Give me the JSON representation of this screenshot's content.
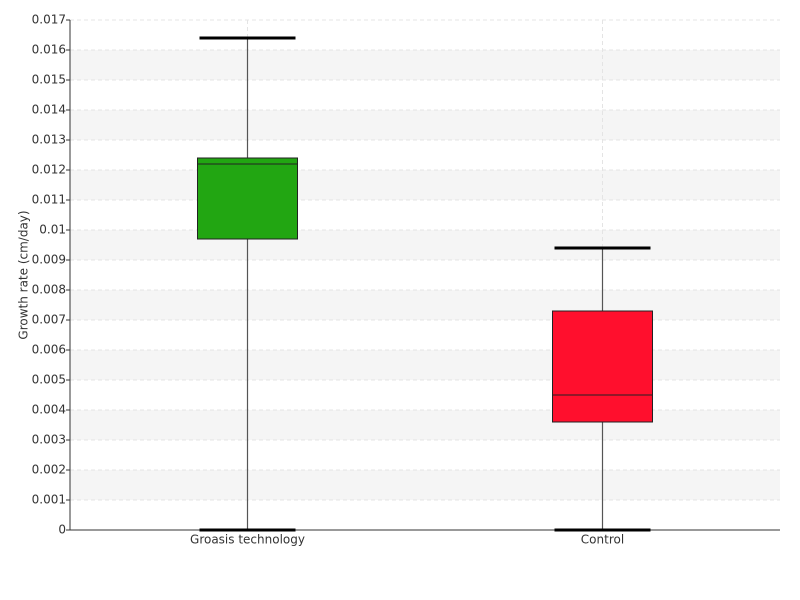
{
  "chart_data": {
    "type": "box",
    "y_label": "Growth rate (cm/day)",
    "categories": [
      "Groasis technology",
      "Control"
    ],
    "boxes": [
      {
        "min": 0,
        "q1": 0.0097,
        "median": 0.0122,
        "q3": 0.0124,
        "max": 0.0164,
        "color": "#22a612"
      },
      {
        "min": 0,
        "q1": 0.0036,
        "median": 0.0045,
        "q3": 0.0073,
        "max": 0.0094,
        "color": "#ff0f2d"
      }
    ],
    "ylim": [
      0,
      0.017
    ],
    "yticks": [
      0,
      0.001,
      0.002,
      0.003,
      0.004,
      0.005,
      0.006,
      0.007,
      0.008,
      0.009,
      0.01,
      0.011,
      0.012,
      0.013,
      0.014,
      0.015,
      0.016,
      0.017
    ],
    "grid": true
  }
}
